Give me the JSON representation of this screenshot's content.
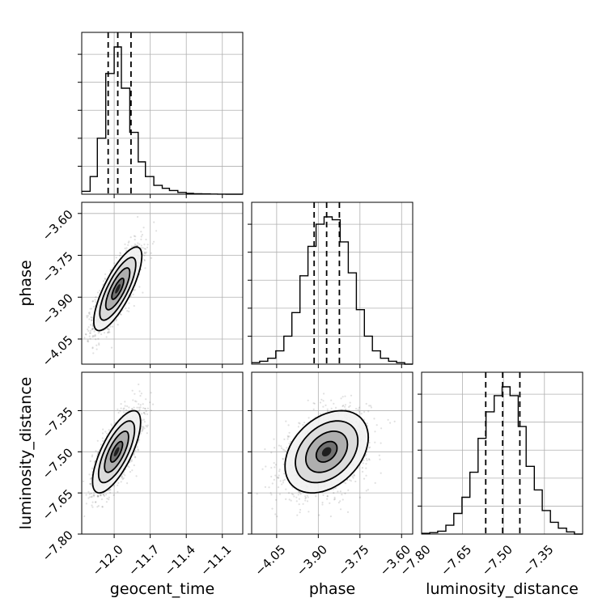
{
  "chart_data": {
    "type": "corner",
    "parameters": [
      "geocent_time",
      "phase",
      "luminosity_distance"
    ],
    "axes": {
      "geocent_time": {
        "label": "geocent_time",
        "range": [
          -12.27,
          -10.93
        ],
        "ticks": [
          -12.0,
          -11.7,
          -11.4,
          -11.1
        ],
        "tick_labels": [
          "−12.0",
          "−11.7",
          "−11.4",
          "−11.1"
        ]
      },
      "phase": {
        "label": "phase",
        "range": [
          -4.14,
          -3.56
        ],
        "ticks": [
          -4.05,
          -3.9,
          -3.75,
          -3.6
        ],
        "tick_labels": [
          "−4.05",
          "−3.90",
          "−3.75",
          "−3.60"
        ]
      },
      "luminosity_distance": {
        "label": "luminosity_distance",
        "range": [
          -7.8,
          -7.21
        ],
        "ticks": [
          -7.8,
          -7.65,
          -7.5,
          -7.35
        ],
        "tick_labels": [
          "−7.80",
          "−7.65",
          "−7.50",
          "−7.35"
        ]
      }
    },
    "marginals": {
      "geocent_time": {
        "bin_edges": [
          -12.27,
          -12.2,
          -12.14,
          -12.07,
          -12.0,
          -11.94,
          -11.87,
          -11.8,
          -11.74,
          -11.67,
          -11.6,
          -11.54,
          -11.47,
          -11.4,
          -11.34,
          -11.27,
          -11.2,
          -11.14,
          -11.07,
          -11.0,
          -10.93
        ],
        "counts": [
          0.02,
          0.12,
          0.38,
          0.82,
          1.0,
          0.72,
          0.42,
          0.22,
          0.12,
          0.06,
          0.04,
          0.025,
          0.012,
          0.006,
          0.003,
          0.002,
          0.001,
          0.0005,
          0,
          0
        ],
        "quantiles": [
          -12.05,
          -11.97,
          -11.86
        ]
      },
      "phase": {
        "bin_edges": [
          -4.14,
          -4.111,
          -4.082,
          -4.053,
          -4.024,
          -3.995,
          -3.966,
          -3.937,
          -3.908,
          -3.879,
          -3.85,
          -3.821,
          -3.792,
          -3.763,
          -3.734,
          -3.705,
          -3.676,
          -3.647,
          -3.618,
          -3.589,
          -3.56
        ],
        "counts": [
          0.01,
          0.02,
          0.04,
          0.09,
          0.19,
          0.35,
          0.6,
          0.8,
          0.95,
          1.0,
          0.98,
          0.83,
          0.62,
          0.37,
          0.19,
          0.09,
          0.04,
          0.02,
          0.01,
          0
        ],
        "quantiles": [
          -3.915,
          -3.87,
          -3.824
        ]
      },
      "luminosity_distance": {
        "bin_edges": [
          -7.8,
          -7.77,
          -7.741,
          -7.711,
          -7.682,
          -7.652,
          -7.623,
          -7.593,
          -7.564,
          -7.534,
          -7.505,
          -7.476,
          -7.446,
          -7.417,
          -7.387,
          -7.358,
          -7.328,
          -7.299,
          -7.269,
          -7.24,
          -7.21
        ],
        "counts": [
          0.005,
          0.01,
          0.02,
          0.06,
          0.14,
          0.25,
          0.42,
          0.65,
          0.83,
          0.94,
          1.0,
          0.94,
          0.73,
          0.46,
          0.3,
          0.16,
          0.08,
          0.04,
          0.015,
          0
        ],
        "quantiles": [
          -7.565,
          -7.503,
          -7.44
        ]
      }
    },
    "joint_2d": [
      {
        "x": "geocent_time",
        "y": "phase",
        "center": [
          -11.97,
          -3.87
        ],
        "sd": [
          0.1,
          0.075
        ],
        "rho": 0.78,
        "contour_sigma": [
          0.5,
          1.0,
          1.5,
          2.0
        ]
      },
      {
        "x": "geocent_time",
        "y": "luminosity_distance",
        "center": [
          -11.98,
          -7.5
        ],
        "sd": [
          0.1,
          0.075
        ],
        "rho": 0.72,
        "contour_sigma": [
          0.5,
          1.0,
          1.5,
          2.0
        ]
      },
      {
        "x": "phase",
        "y": "luminosity_distance",
        "center": [
          -3.87,
          -7.5
        ],
        "sd": [
          0.075,
          0.075
        ],
        "rho": 0.35,
        "contour_sigma": [
          0.5,
          1.0,
          1.5,
          2.0
        ]
      }
    ],
    "grid": true
  }
}
